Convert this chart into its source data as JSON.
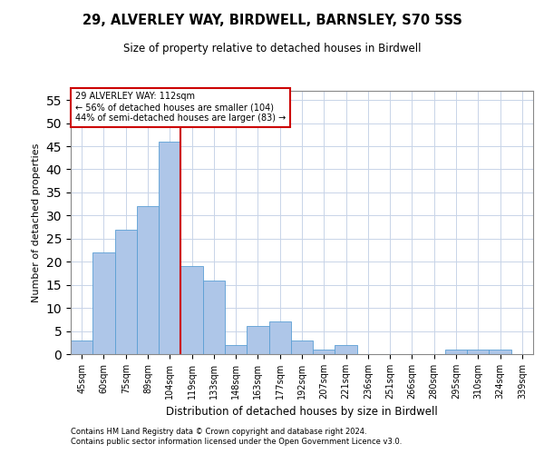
{
  "title": "29, ALVERLEY WAY, BIRDWELL, BARNSLEY, S70 5SS",
  "subtitle": "Size of property relative to detached houses in Birdwell",
  "xlabel": "Distribution of detached houses by size in Birdwell",
  "ylabel": "Number of detached properties",
  "categories": [
    "45sqm",
    "60sqm",
    "75sqm",
    "89sqm",
    "104sqm",
    "119sqm",
    "133sqm",
    "148sqm",
    "163sqm",
    "177sqm",
    "192sqm",
    "207sqm",
    "221sqm",
    "236sqm",
    "251sqm",
    "266sqm",
    "280sqm",
    "295sqm",
    "310sqm",
    "324sqm",
    "339sqm"
  ],
  "values": [
    3,
    22,
    27,
    32,
    46,
    19,
    16,
    2,
    6,
    7,
    3,
    1,
    2,
    0,
    0,
    0,
    0,
    1,
    1,
    1,
    0
  ],
  "bar_color": "#aec6e8",
  "bar_edge_color": "#5a9fd4",
  "red_line_color": "#cc0000",
  "annotation_line1": "29 ALVERLEY WAY: 112sqm",
  "annotation_line2": "← 56% of detached houses are smaller (104)",
  "annotation_line3": "44% of semi-detached houses are larger (83) →",
  "annotation_box_color": "#cc0000",
  "ylim": [
    0,
    57
  ],
  "yticks": [
    0,
    5,
    10,
    15,
    20,
    25,
    30,
    35,
    40,
    45,
    50,
    55
  ],
  "footnote1": "Contains HM Land Registry data © Crown copyright and database right 2024.",
  "footnote2": "Contains public sector information licensed under the Open Government Licence v3.0.",
  "bg_color": "#ffffff",
  "grid_color": "#c8d4e8"
}
